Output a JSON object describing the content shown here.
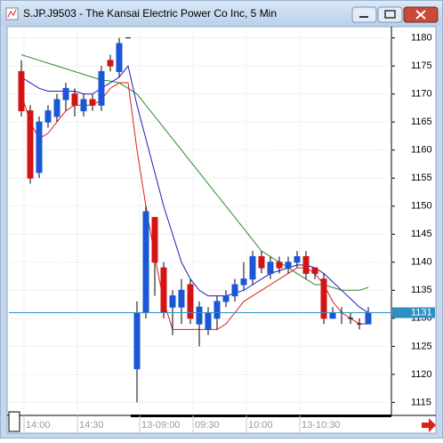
{
  "chart_data": {
    "type": "candlestick",
    "title": "S.JP.J9503 - The Kansai Electric Power Co Inc, 5 Min",
    "categories": [
      "14:00",
      null,
      null,
      null,
      null,
      null,
      "14:30",
      null,
      null,
      null,
      null,
      null,
      null,
      "13-09:00",
      null,
      null,
      null,
      null,
      null,
      "09:30",
      null,
      null,
      null,
      null,
      null,
      "10:00",
      null,
      null,
      null,
      null,
      null,
      "13-10:30",
      null,
      null,
      null,
      null,
      null,
      null,
      null,
      null
    ],
    "open": [
      1174,
      1167,
      1156,
      1165,
      1166,
      1169,
      1170,
      1167,
      1169,
      1168,
      1176,
      1174,
      1180,
      1121,
      1131,
      1148,
      1139,
      1132,
      1132,
      1136,
      1129,
      1128,
      1130,
      1133,
      1134,
      1136,
      1137,
      1141,
      1138,
      1140,
      1139,
      1140,
      1141,
      1139,
      1137,
      1130,
      1131,
      1130,
      1129,
      1129
    ],
    "high": [
      1176,
      1168,
      1166,
      1168,
      1170,
      1172,
      1171,
      1170,
      1170,
      1175,
      1177,
      1180,
      1180,
      1133,
      1150,
      1148,
      1140,
      1135,
      1137,
      1137,
      1133,
      1132,
      1134,
      1135,
      1137,
      1140,
      1142,
      1142,
      1141,
      1141,
      1141,
      1142,
      1142,
      1139,
      1138,
      1132,
      1132,
      1131,
      1130,
      1132
    ],
    "low": [
      1166,
      1154,
      1155,
      1164,
      1165,
      1167,
      1166,
      1166,
      1167,
      1167,
      1174,
      1173,
      1180,
      1115,
      1130,
      1134,
      1130,
      1127,
      1129,
      1129,
      1125,
      1127,
      1128,
      1132,
      1133,
      1135,
      1136,
      1138,
      1137,
      1138,
      1138,
      1139,
      1137,
      1137,
      1129,
      1130,
      1129,
      1129,
      1128,
      1129
    ],
    "close": [
      1167,
      1155,
      1165,
      1167,
      1169,
      1171,
      1168,
      1169,
      1168,
      1174,
      1175,
      1179,
      1180,
      1131,
      1149,
      1140,
      1131,
      1134,
      1135,
      1130,
      1132,
      1131,
      1133,
      1134,
      1136,
      1137,
      1141,
      1139,
      1140,
      1139,
      1140,
      1141,
      1138,
      1138,
      1130,
      1131,
      1131,
      1130,
      1129,
      1131
    ],
    "up_color": "#1a56d6",
    "down_color": "#d41414",
    "series": [
      {
        "color": "#2a8a2a",
        "values": [
          1177,
          1176.5,
          1176,
          1175.5,
          1175,
          1174.5,
          1174,
          1173.5,
          1173,
          1172.5,
          1172.3,
          1172,
          1171,
          1170,
          1168,
          1166,
          1164,
          1162,
          1160,
          1158,
          1156,
          1154,
          1152,
          1150,
          1148,
          1146,
          1144,
          1142,
          1141,
          1140,
          1139,
          1138,
          1137,
          1136,
          1136,
          1135.5,
          1135,
          1135,
          1135,
          1135.5
        ]
      },
      {
        "color": "#1c1cb8",
        "values": [
          1173,
          1172,
          1171,
          1170.5,
          1170.5,
          1170.5,
          1170.5,
          1170,
          1170,
          1171,
          1172,
          1173,
          1175,
          1168,
          1162,
          1156,
          1150,
          1145,
          1140,
          1137,
          1135,
          1134,
          1134,
          1134,
          1134.5,
          1135,
          1136,
          1137,
          1138,
          1138.5,
          1139,
          1139.5,
          1139.5,
          1139,
          1138,
          1136.5,
          1135,
          1133.5,
          1132,
          1131
        ]
      },
      {
        "color": "#e01c1c",
        "values": [
          1170,
          1165,
          1162,
          1163,
          1165,
          1167,
          1168,
          1168,
          1168,
          1169,
          1171,
          1172,
          1172,
          1160,
          1150,
          1141,
          1133,
          1128,
          1128,
          1128,
          1128,
          1128,
          1128,
          1129,
          1131,
          1133,
          1134,
          1135,
          1136,
          1137,
          1138,
          1139,
          1139,
          1138,
          1136,
          1133,
          1131,
          1130,
          1129,
          1129
        ]
      }
    ],
    "last_price": 1131,
    "last_price_color": "#2f8fc4",
    "ylim": [
      1113,
      1182
    ],
    "yticks": [
      1115,
      1120,
      1125,
      1130,
      1135,
      1140,
      1145,
      1150,
      1155,
      1160,
      1165,
      1170,
      1175,
      1180
    ],
    "grid": true
  }
}
